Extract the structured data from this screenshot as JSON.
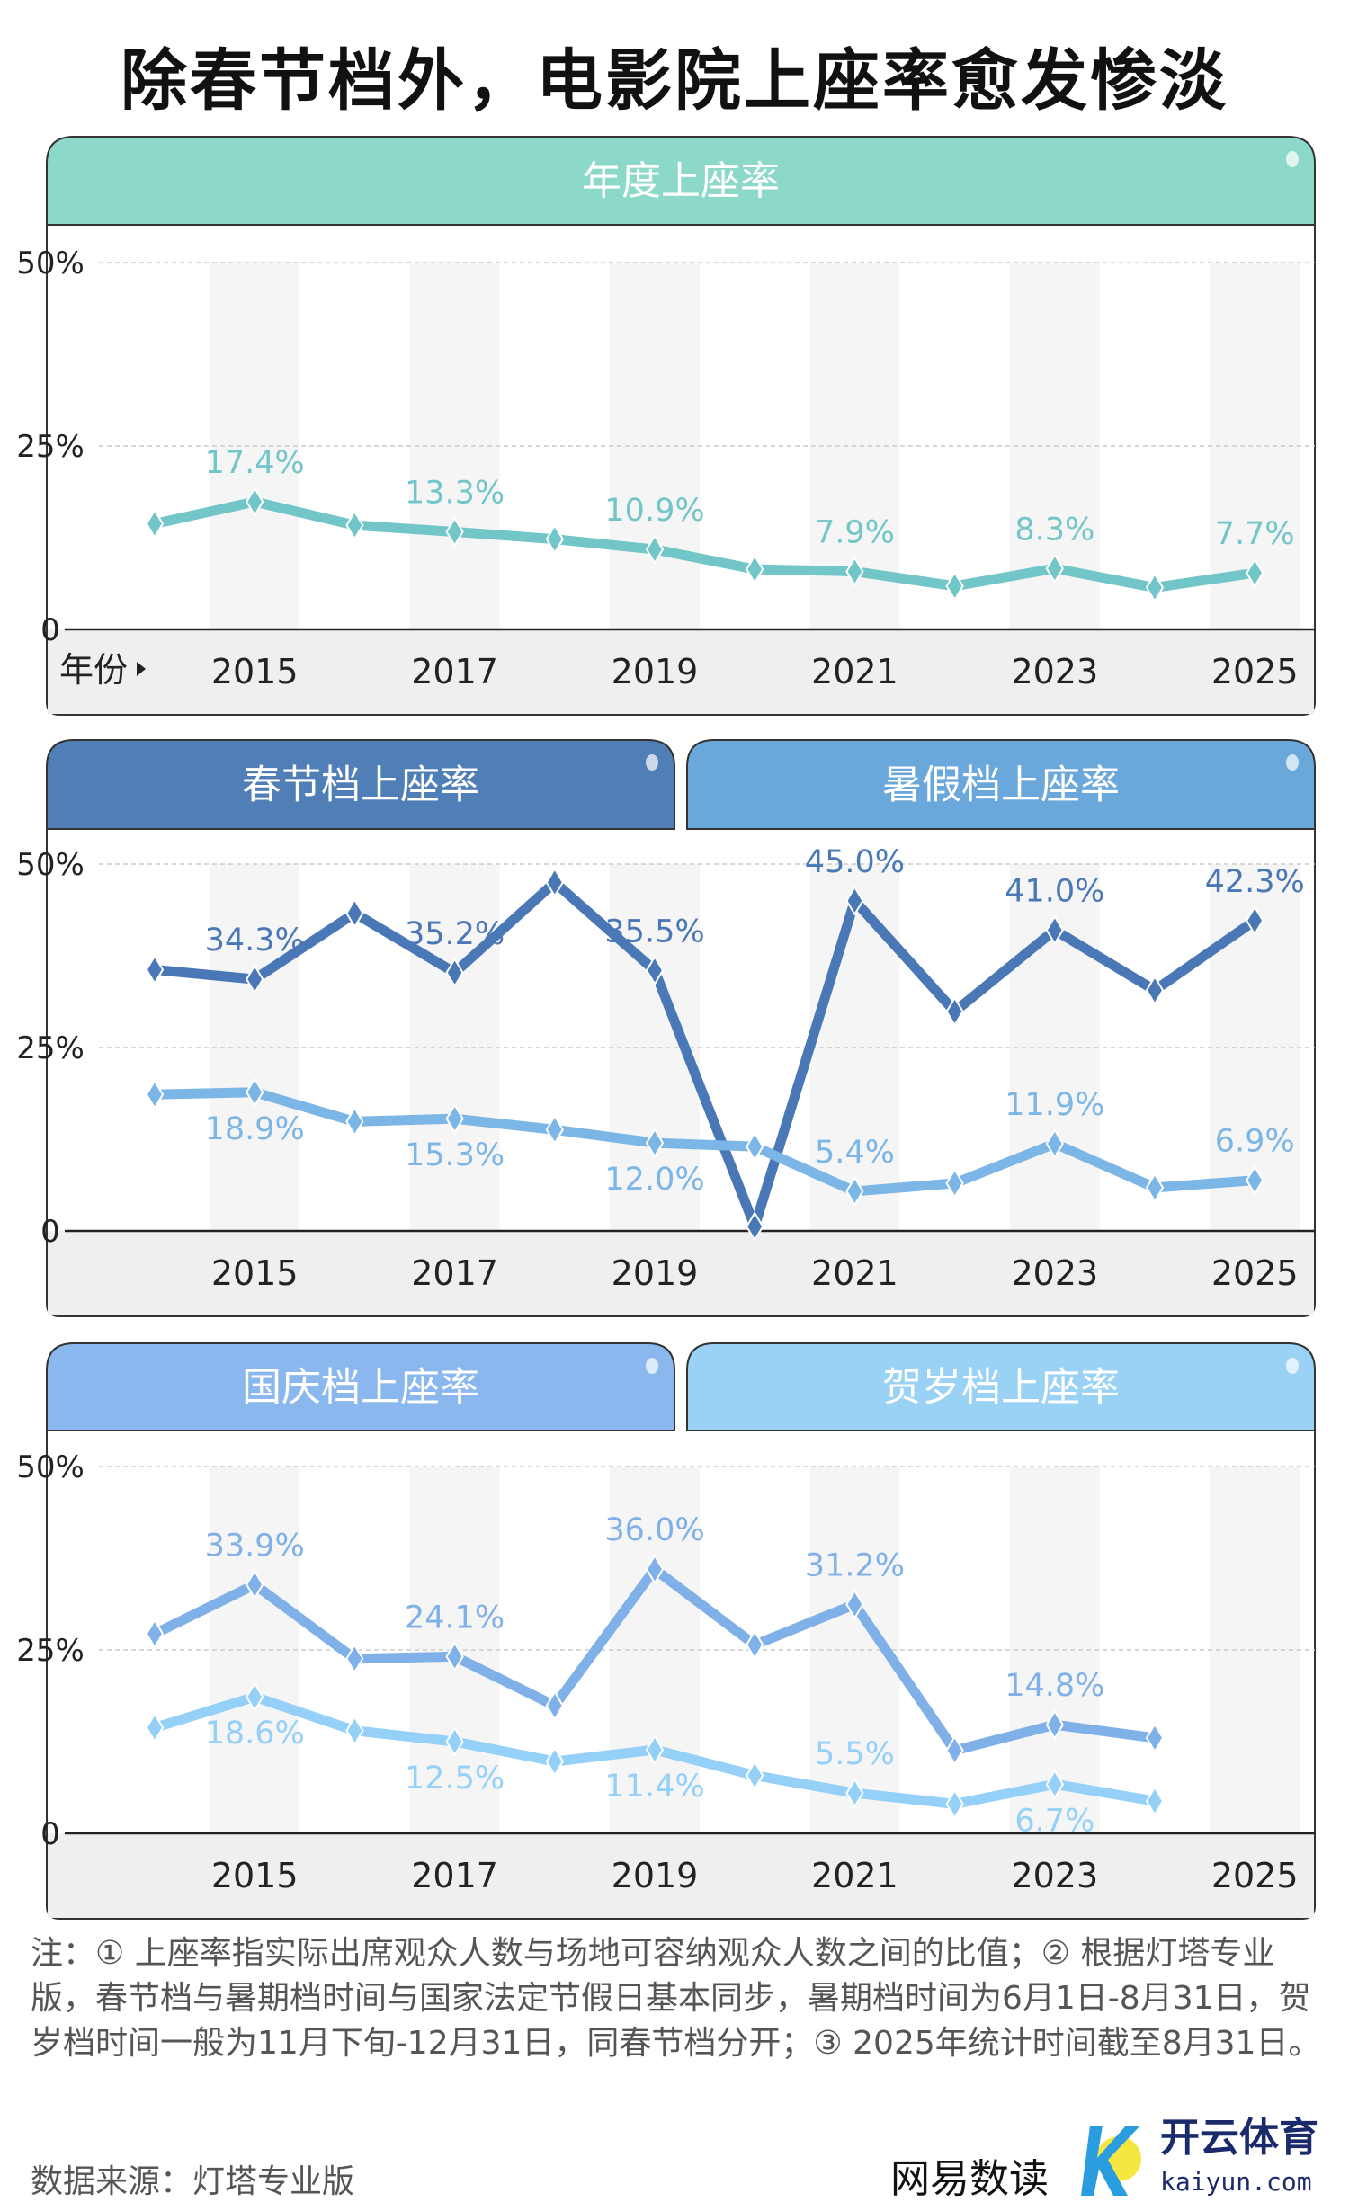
{
  "title": "除春节档外，电影院上座率愈发惨淡",
  "chart_data": [
    {
      "type": "line",
      "panel_titles": [
        "年度上座率"
      ],
      "x": [
        2014,
        2015,
        2016,
        2017,
        2018,
        2019,
        2020,
        2021,
        2022,
        2023,
        2024,
        2025
      ],
      "xtick_labels": [
        "2015",
        "2017",
        "2019",
        "2021",
        "2023",
        "2025"
      ],
      "xlabel": "年份",
      "ytick_labels": [
        "50%",
        "25%",
        "0"
      ],
      "ylim": [
        0,
        50
      ],
      "series": [
        {
          "name": "年度上座率",
          "color": "#72c6c8",
          "values": [
            14.4,
            17.4,
            14.2,
            13.3,
            12.3,
            10.9,
            8.2,
            7.9,
            5.9,
            8.3,
            5.7,
            7.7
          ],
          "labels": [
            {
              "i": 1,
              "text": "17.4%",
              "pos": "above"
            },
            {
              "i": 3,
              "text": "13.3%",
              "pos": "above"
            },
            {
              "i": 5,
              "text": "10.9%",
              "pos": "above"
            },
            {
              "i": 7,
              "text": "7.9%",
              "pos": "above"
            },
            {
              "i": 9,
              "text": "8.3%",
              "pos": "above"
            },
            {
              "i": 11,
              "text": "7.7%",
              "pos": "above"
            }
          ]
        }
      ],
      "header_colors": [
        "#8cd9c9"
      ]
    },
    {
      "type": "line",
      "panel_titles": [
        "春节档上座率",
        "暑假档上座率"
      ],
      "x": [
        2014,
        2015,
        2016,
        2017,
        2018,
        2019,
        2020,
        2021,
        2022,
        2023,
        2024,
        2025
      ],
      "xtick_labels": [
        "2015",
        "2017",
        "2019",
        "2021",
        "2023",
        "2025"
      ],
      "xlabel": "",
      "ytick_labels": [
        "50%",
        "25%",
        "0"
      ],
      "ylim": [
        0,
        50
      ],
      "series": [
        {
          "name": "春节档上座率",
          "color": "#4a78b6",
          "values": [
            35.6,
            34.3,
            43.3,
            35.2,
            47.5,
            35.5,
            0.6,
            45.0,
            29.9,
            41.0,
            32.8,
            42.3
          ],
          "labels": [
            {
              "i": 1,
              "text": "34.3%",
              "pos": "above"
            },
            {
              "i": 3,
              "text": "35.2%",
              "pos": "above"
            },
            {
              "i": 5,
              "text": "35.5%",
              "pos": "above"
            },
            {
              "i": 7,
              "text": "45.0%",
              "pos": "above"
            },
            {
              "i": 9,
              "text": "41.0%",
              "pos": "above"
            },
            {
              "i": 11,
              "text": "42.3%",
              "pos": "above"
            }
          ]
        },
        {
          "name": "暑假档上座率",
          "color": "#7cb6e6",
          "values": [
            18.6,
            18.9,
            14.9,
            15.3,
            13.8,
            12.0,
            11.5,
            5.4,
            6.5,
            11.9,
            5.9,
            6.9
          ],
          "labels": [
            {
              "i": 1,
              "text": "18.9%",
              "pos": "below"
            },
            {
              "i": 3,
              "text": "15.3%",
              "pos": "below"
            },
            {
              "i": 5,
              "text": "12.0%",
              "pos": "below"
            },
            {
              "i": 7,
              "text": "5.4%",
              "pos": "above"
            },
            {
              "i": 9,
              "text": "11.9%",
              "pos": "above"
            },
            {
              "i": 11,
              "text": "6.9%",
              "pos": "above"
            }
          ]
        }
      ],
      "header_colors": [
        "#507fb8",
        "#6aa8dc"
      ]
    },
    {
      "type": "line",
      "panel_titles": [
        "国庆档上座率",
        "贺岁档上座率"
      ],
      "x": [
        2014,
        2015,
        2016,
        2017,
        2018,
        2019,
        2020,
        2021,
        2022,
        2023,
        2024,
        2025
      ],
      "xtick_labels": [
        "2015",
        "2017",
        "2019",
        "2021",
        "2023",
        "2025"
      ],
      "xlabel": "",
      "ytick_labels": [
        "50%",
        "25%",
        "0"
      ],
      "ylim": [
        0,
        50
      ],
      "series": [
        {
          "name": "国庆档上座率",
          "color": "#80b0e8",
          "values": [
            27.2,
            33.9,
            23.8,
            24.1,
            17.4,
            36.0,
            25.7,
            31.2,
            11.3,
            14.8,
            13.0,
            null
          ],
          "labels": [
            {
              "i": 1,
              "text": "33.9%",
              "pos": "above"
            },
            {
              "i": 3,
              "text": "24.1%",
              "pos": "above"
            },
            {
              "i": 5,
              "text": "36.0%",
              "pos": "above"
            },
            {
              "i": 7,
              "text": "31.2%",
              "pos": "above"
            },
            {
              "i": 9,
              "text": "14.8%",
              "pos": "above"
            }
          ]
        },
        {
          "name": "贺岁档上座率",
          "color": "#94d0f8",
          "values": [
            14.4,
            18.6,
            14.0,
            12.5,
            9.8,
            11.4,
            7.9,
            5.5,
            4.0,
            6.7,
            4.4,
            null
          ],
          "labels": [
            {
              "i": 1,
              "text": "18.6%",
              "pos": "below"
            },
            {
              "i": 3,
              "text": "12.5%",
              "pos": "below"
            },
            {
              "i": 5,
              "text": "11.4%",
              "pos": "below"
            },
            {
              "i": 7,
              "text": "5.5%",
              "pos": "above"
            },
            {
              "i": 9,
              "text": "6.7%",
              "pos": "below"
            }
          ]
        }
      ],
      "header_colors": [
        "#8ab8ee",
        "#9ad2f6"
      ]
    }
  ],
  "notes": "注：① 上座率指实际出席观众人数与场地可容纳观众人数之间的比值；② 根据灯塔专业版，春节档与暑期档时间与国家法定节假日基本同步，暑期档时间为6月1日-8月31日，贺岁档时间一般为11月下旬-12月31日，同春节档分开；③ 2025年统计时间截至8月31日。",
  "source": "数据来源：灯塔专业版",
  "logo": "网易数读",
  "watermark": {
    "name": "开云体育",
    "url": "kaiyun.com"
  }
}
